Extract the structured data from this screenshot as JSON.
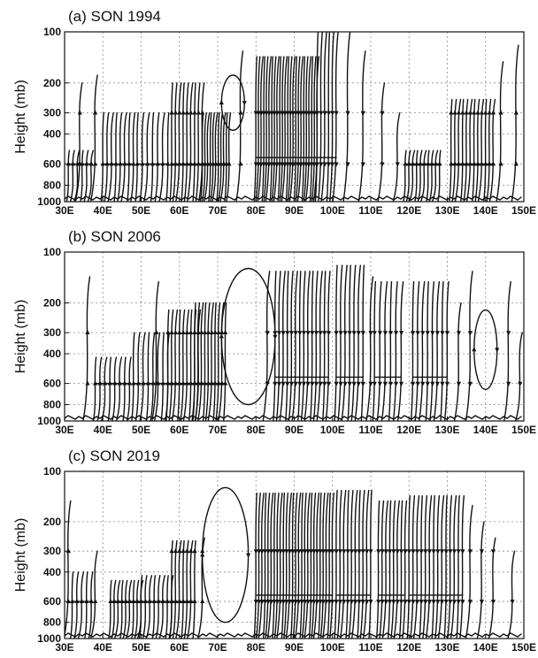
{
  "chart_data": [
    {
      "type": "streamline",
      "title": "(a) SON 1994",
      "ylabel": "Height (mb)",
      "xlabel": "",
      "xlim": [
        30,
        150
      ],
      "ylim": [
        1000,
        100
      ],
      "y_scale": "log",
      "x_ticks": [
        "30E",
        "40E",
        "50E",
        "60E",
        "70E",
        "80E",
        "90E",
        "100E",
        "110E",
        "120E",
        "130E",
        "140E",
        "150E"
      ],
      "x_tick_values": [
        30,
        40,
        50,
        60,
        70,
        80,
        90,
        100,
        110,
        120,
        130,
        140,
        150
      ],
      "y_ticks": [
        "100",
        "200",
        "300",
        "400",
        "600",
        "800",
        "1000"
      ],
      "y_tick_values": [
        100,
        200,
        300,
        400,
        600,
        800,
        1000
      ],
      "grid": true,
      "dense_regions": [
        {
          "x0": 31,
          "x1": 37,
          "n": 6,
          "top": 500,
          "dir": "up"
        },
        {
          "x0": 40,
          "x1": 48,
          "n": 8,
          "top": 300,
          "dir": "up"
        },
        {
          "x0": 49,
          "x1": 57,
          "n": 7,
          "top": 300,
          "dir": "up"
        },
        {
          "x0": 58,
          "x1": 66,
          "n": 9,
          "top": 200,
          "dir": "up"
        },
        {
          "x0": 66,
          "x1": 73,
          "n": 11,
          "top": 300,
          "dir": "up"
        },
        {
          "x0": 80,
          "x1": 96,
          "n": 24,
          "top": 140,
          "dir": "down"
        },
        {
          "x0": 96,
          "x1": 101,
          "n": 6,
          "top": 100,
          "dir": "down"
        },
        {
          "x0": 119,
          "x1": 128,
          "n": 10,
          "top": 500,
          "dir": "up"
        },
        {
          "x0": 131,
          "x1": 142,
          "n": 12,
          "top": 250,
          "dir": "up"
        }
      ],
      "sparse_lines": [
        {
          "x": 34,
          "top": 200,
          "dir": "up"
        },
        {
          "x": 38,
          "top": 180,
          "dir": "up"
        },
        {
          "x": 76,
          "top": 130,
          "dir": "up"
        },
        {
          "x": 104,
          "top": 100,
          "dir": "down"
        },
        {
          "x": 108,
          "top": 130,
          "dir": "down"
        },
        {
          "x": 113,
          "top": 200,
          "dir": "down"
        },
        {
          "x": 117,
          "top": 300,
          "dir": "down"
        },
        {
          "x": 144,
          "top": 150,
          "dir": "up"
        },
        {
          "x": 148,
          "top": 120,
          "dir": "up"
        }
      ],
      "loops": [
        {
          "cx": 74,
          "cy": 250,
          "rx": 3,
          "ry_top": 180,
          "ry_bot": 380
        }
      ]
    },
    {
      "type": "streamline",
      "title": "(b) SON 2006",
      "ylabel": "Height (mb)",
      "xlabel": "",
      "xlim": [
        30,
        150
      ],
      "ylim": [
        1000,
        100
      ],
      "y_scale": "log",
      "x_ticks": [
        "30E",
        "40E",
        "50E",
        "60E",
        "70E",
        "80E",
        "90E",
        "100E",
        "110E",
        "120E",
        "130E",
        "140E",
        "150E"
      ],
      "x_tick_values": [
        30,
        40,
        50,
        60,
        70,
        80,
        90,
        100,
        110,
        120,
        130,
        140,
        150
      ],
      "y_ticks": [
        "100",
        "200",
        "300",
        "400",
        "600",
        "800",
        "1000"
      ],
      "y_tick_values": [
        100,
        200,
        300,
        400,
        600,
        800,
        1000
      ],
      "grid": true,
      "dense_regions": [
        {
          "x0": 38,
          "x1": 47,
          "n": 8,
          "top": 420,
          "dir": "up"
        },
        {
          "x0": 48,
          "x1": 57,
          "n": 8,
          "top": 300,
          "dir": "up"
        },
        {
          "x0": 57,
          "x1": 65,
          "n": 9,
          "top": 220,
          "dir": "up"
        },
        {
          "x0": 64,
          "x1": 72,
          "n": 10,
          "top": 200,
          "dir": "up"
        },
        {
          "x0": 85,
          "x1": 99,
          "n": 14,
          "top": 130,
          "dir": "down"
        },
        {
          "x0": 101,
          "x1": 108,
          "n": 7,
          "top": 120,
          "dir": "down"
        },
        {
          "x0": 111,
          "x1": 118,
          "n": 6,
          "top": 150,
          "dir": "down"
        },
        {
          "x0": 121,
          "x1": 130,
          "n": 8,
          "top": 150,
          "dir": "down"
        }
      ],
      "sparse_lines": [
        {
          "x": 36,
          "top": 140,
          "dir": "up"
        },
        {
          "x": 54,
          "top": 150,
          "dir": "up"
        },
        {
          "x": 83,
          "top": 130,
          "dir": "down"
        },
        {
          "x": 110,
          "top": 140,
          "dir": "down"
        },
        {
          "x": 133,
          "top": 200,
          "dir": "down"
        },
        {
          "x": 136,
          "top": 130,
          "dir": "down"
        },
        {
          "x": 146,
          "top": 150,
          "dir": "down"
        },
        {
          "x": 149,
          "top": 300,
          "dir": "down"
        }
      ],
      "loops": [
        {
          "cx": 78,
          "cy": 300,
          "rx": 7,
          "ry_top": 125,
          "ry_bot": 800
        },
        {
          "cx": 140,
          "cy": 360,
          "rx": 3,
          "ry_top": 220,
          "ry_bot": 650
        }
      ]
    },
    {
      "type": "streamline",
      "title": "(c) SON 2019",
      "ylabel": "Height (mb)",
      "xlabel": "",
      "xlim": [
        30,
        150
      ],
      "ylim": [
        1000,
        100
      ],
      "y_scale": "log",
      "x_ticks": [
        "30E",
        "40E",
        "50E",
        "60E",
        "70E",
        "80E",
        "90E",
        "100E",
        "110E",
        "120E",
        "130E",
        "140E",
        "150E"
      ],
      "x_tick_values": [
        30,
        40,
        50,
        60,
        70,
        80,
        90,
        100,
        110,
        120,
        130,
        140,
        150
      ],
      "y_ticks": [
        "100",
        "200",
        "300",
        "400",
        "600",
        "800",
        "1000"
      ],
      "y_tick_values": [
        100,
        200,
        300,
        400,
        600,
        800,
        1000
      ],
      "grid": true,
      "dense_regions": [
        {
          "x0": 32,
          "x1": 37,
          "n": 5,
          "top": 400,
          "dir": "up"
        },
        {
          "x0": 42,
          "x1": 50,
          "n": 9,
          "top": 450,
          "dir": "up"
        },
        {
          "x0": 50,
          "x1": 58,
          "n": 8,
          "top": 420,
          "dir": "up"
        },
        {
          "x0": 58,
          "x1": 64,
          "n": 7,
          "top": 260,
          "dir": "up"
        },
        {
          "x0": 80,
          "x1": 100,
          "n": 26,
          "top": 135,
          "dir": "down"
        },
        {
          "x0": 101,
          "x1": 110,
          "n": 10,
          "top": 130,
          "dir": "down"
        },
        {
          "x0": 112,
          "x1": 119,
          "n": 8,
          "top": 150,
          "dir": "down"
        },
        {
          "x0": 120,
          "x1": 134,
          "n": 14,
          "top": 140,
          "dir": "down"
        }
      ],
      "sparse_lines": [
        {
          "x": 31,
          "top": 150,
          "dir": "up"
        },
        {
          "x": 38,
          "top": 300,
          "dir": "up"
        },
        {
          "x": 66,
          "top": 250,
          "dir": "up"
        },
        {
          "x": 136,
          "top": 160,
          "dir": "down"
        },
        {
          "x": 139,
          "top": 200,
          "dir": "down"
        },
        {
          "x": 142,
          "top": 250,
          "dir": "down"
        },
        {
          "x": 147,
          "top": 300,
          "dir": "down"
        }
      ],
      "loops": [
        {
          "cx": 72,
          "cy": 320,
          "rx": 6,
          "ry_top": 125,
          "ry_bot": 800
        }
      ]
    }
  ]
}
